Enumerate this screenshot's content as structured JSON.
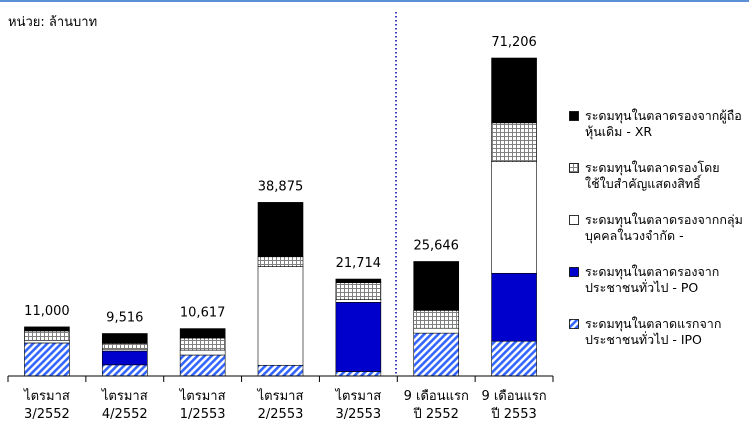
{
  "chart_data": {
    "type": "stacked-bar",
    "unit_label": "หน่วย: ล้านบาท",
    "categories": [
      [
        "ไตรมาส",
        "3/2552"
      ],
      [
        "ไตรมาส",
        "4/2552"
      ],
      [
        "ไตรมาส",
        "1/2553"
      ],
      [
        "ไตรมาส",
        "2/2553"
      ],
      [
        "ไตรมาส",
        "3/2553"
      ],
      [
        "9 เดือนแรก",
        "ปี 2552"
      ],
      [
        "9 เดือนแรก",
        "ปี 2553"
      ]
    ],
    "totals": [
      11000,
      9516,
      10617,
      38875,
      21714,
      25646,
      71206
    ],
    "total_labels": [
      "11,000",
      "9,516",
      "10,617",
      "38,875",
      "21,714",
      "25,646",
      "71,206"
    ],
    "series": [
      {
        "name": "ระดมทุนในตลาดแรกจากประชาชนทั่วไป - IPO",
        "color": "#3366ff",
        "pattern": "hatch",
        "values": [
          7400,
          2500,
          4700,
          2400,
          1000,
          9600,
          7800
        ]
      },
      {
        "name": "ระดมทุนในตลาดรองจากประชาชนทั่วไป - PO",
        "color": "#0000cc",
        "pattern": "solid",
        "values": [
          0,
          3100,
          0,
          0,
          15500,
          0,
          15200
        ]
      },
      {
        "name": "ระดมทุนในตลาดรองจากกลุ่มบุคคลในวงจำกัด -",
        "color": "#ffffff",
        "pattern": "solid",
        "values": [
          600,
          400,
          1100,
          22100,
          600,
          1100,
          25000
        ]
      },
      {
        "name": "ระดมทุนในตลาดรองโดยใช้ใบสำคัญแสดงสิทธิ์",
        "color": "#808080",
        "pattern": "grid",
        "values": [
          2100,
          1300,
          2700,
          2200,
          3800,
          4000,
          8700
        ]
      },
      {
        "name": "ระดมทุนในตลาดรองจากผู้ถือหุ้นเดิม - XR",
        "color": "#000000",
        "pattern": "solid",
        "values": [
          900,
          2216,
          2117,
          12175,
          814,
          10946,
          14506
        ]
      }
    ]
  }
}
